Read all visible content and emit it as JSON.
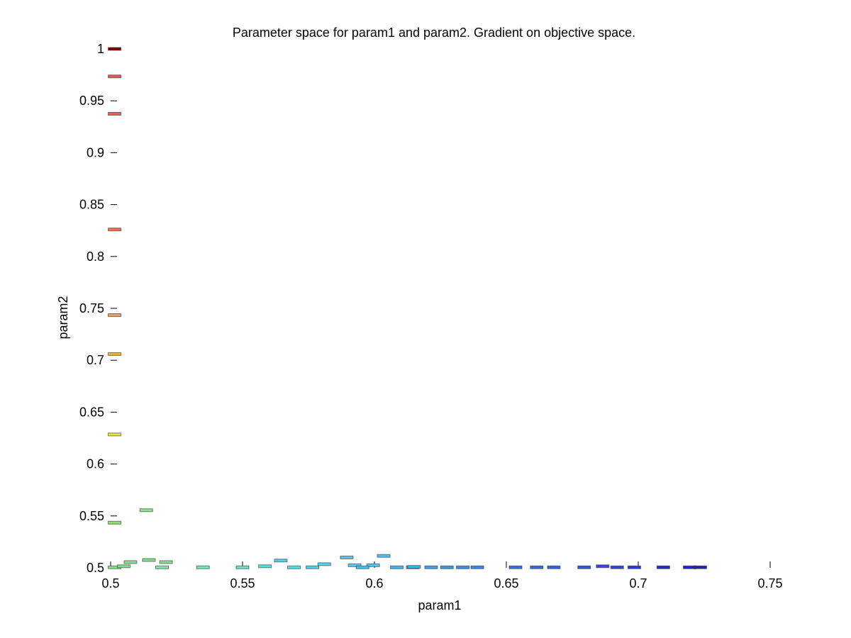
{
  "chart_data": {
    "type": "scatter",
    "title": "Parameter space for param1 and param2. Gradient on objective space.",
    "xlabel": "param1",
    "ylabel": "param2",
    "xlim": [
      0.5,
      0.75
    ],
    "ylim": [
      0.5,
      1.0
    ],
    "xticks": [
      0.5,
      0.55,
      0.6,
      0.65,
      0.7,
      0.75
    ],
    "yticks": [
      0.5,
      0.55,
      0.6,
      0.65,
      0.7,
      0.75,
      0.8,
      0.85,
      0.9,
      0.95,
      1.0
    ],
    "xtick_labels": [
      "0.5",
      "0.55",
      "0.6",
      "0.65",
      "0.7",
      "0.75"
    ],
    "ytick_labels": [
      "0.5",
      "0.55",
      "0.6",
      "0.65",
      "0.7",
      "0.75",
      "0.8",
      "0.85",
      "0.9",
      "0.95",
      "1"
    ],
    "grid": false,
    "marker": "rectangle",
    "colormap": "jet",
    "points": [
      {
        "x": 0.5015,
        "y": 1.0,
        "color": "#800000"
      },
      {
        "x": 0.5015,
        "y": 0.9735,
        "color": "#e05a5a"
      },
      {
        "x": 0.5015,
        "y": 0.9375,
        "color": "#e86060"
      },
      {
        "x": 0.5015,
        "y": 0.826,
        "color": "#f07050"
      },
      {
        "x": 0.5015,
        "y": 0.7435,
        "color": "#f0a050"
      },
      {
        "x": 0.5015,
        "y": 0.706,
        "color": "#f0b040"
      },
      {
        "x": 0.5015,
        "y": 0.6285,
        "color": "#e8e830"
      },
      {
        "x": 0.5015,
        "y": 0.5435,
        "color": "#90e070"
      },
      {
        "x": 0.5135,
        "y": 0.5555,
        "color": "#90e090"
      },
      {
        "x": 0.5015,
        "y": 0.5005,
        "color": "#80e080"
      },
      {
        "x": 0.505,
        "y": 0.5015,
        "color": "#80e090"
      },
      {
        "x": 0.5075,
        "y": 0.5055,
        "color": "#80e090"
      },
      {
        "x": 0.5145,
        "y": 0.5075,
        "color": "#80e090"
      },
      {
        "x": 0.521,
        "y": 0.5055,
        "color": "#80e090"
      },
      {
        "x": 0.5195,
        "y": 0.5005,
        "color": "#80e8a0"
      },
      {
        "x": 0.535,
        "y": 0.5005,
        "color": "#70e8b0"
      },
      {
        "x": 0.55,
        "y": 0.5005,
        "color": "#60e8c0"
      },
      {
        "x": 0.5585,
        "y": 0.5015,
        "color": "#50e0e0"
      },
      {
        "x": 0.5645,
        "y": 0.507,
        "color": "#50d0f0"
      },
      {
        "x": 0.5695,
        "y": 0.5005,
        "color": "#50e0f0"
      },
      {
        "x": 0.581,
        "y": 0.5035,
        "color": "#50d8f0"
      },
      {
        "x": 0.5765,
        "y": 0.5005,
        "color": "#40d8f0"
      },
      {
        "x": 0.5895,
        "y": 0.51,
        "color": "#50c8f0"
      },
      {
        "x": 0.5925,
        "y": 0.5025,
        "color": "#50d0f0"
      },
      {
        "x": 0.5995,
        "y": 0.5025,
        "color": "#50c8f0"
      },
      {
        "x": 0.5955,
        "y": 0.5005,
        "color": "#40c0f0"
      },
      {
        "x": 0.6035,
        "y": 0.5115,
        "color": "#50c0f0"
      },
      {
        "x": 0.6085,
        "y": 0.5005,
        "color": "#40b8f0"
      },
      {
        "x": 0.6145,
        "y": 0.5005,
        "color": "#40a8f0"
      },
      {
        "x": 0.615,
        "y": 0.5009,
        "color": "#40b0f0"
      },
      {
        "x": 0.6215,
        "y": 0.5005,
        "color": "#3fa0f0"
      },
      {
        "x": 0.6275,
        "y": 0.5005,
        "color": "#3898f0"
      },
      {
        "x": 0.6335,
        "y": 0.5005,
        "color": "#3890f0"
      },
      {
        "x": 0.639,
        "y": 0.5005,
        "color": "#3588f0"
      },
      {
        "x": 0.6535,
        "y": 0.5005,
        "color": "#3070f0"
      },
      {
        "x": 0.6615,
        "y": 0.5005,
        "color": "#3068f0"
      },
      {
        "x": 0.668,
        "y": 0.5005,
        "color": "#3060f0"
      },
      {
        "x": 0.6795,
        "y": 0.5005,
        "color": "#3050f0"
      },
      {
        "x": 0.6865,
        "y": 0.5015,
        "color": "#4040f0"
      },
      {
        "x": 0.692,
        "y": 0.5005,
        "color": "#3040f0"
      },
      {
        "x": 0.6985,
        "y": 0.5005,
        "color": "#2838e8"
      },
      {
        "x": 0.7095,
        "y": 0.5005,
        "color": "#2028e0"
      },
      {
        "x": 0.7195,
        "y": 0.5005,
        "color": "#2020d8"
      },
      {
        "x": 0.7235,
        "y": 0.5005,
        "color": "#2020c0"
      }
    ]
  }
}
